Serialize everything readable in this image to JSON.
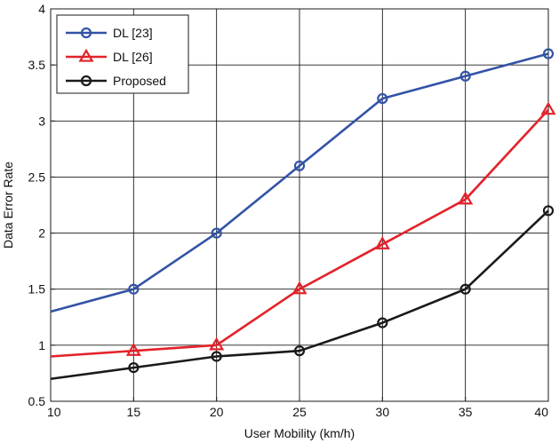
{
  "chart_data": {
    "type": "line",
    "title": "",
    "xlabel": "User Mobility (km/h)",
    "ylabel": "Data Error Rate",
    "xlim": [
      10,
      40
    ],
    "ylim": [
      0.5,
      4
    ],
    "xticks": [
      10,
      15,
      20,
      25,
      30,
      35,
      40
    ],
    "yticks": [
      0.5,
      1,
      1.5,
      2,
      2.5,
      3,
      3.5,
      4
    ],
    "xtick_labels": [
      "10",
      "15",
      "20",
      "25",
      "30",
      "35",
      "40"
    ],
    "ytick_labels": [
      "0.5",
      "1",
      "1.5",
      "2",
      "2.5",
      "3",
      "3.5",
      "4"
    ],
    "grid": true,
    "legend_position": "top-left",
    "series": [
      {
        "name": "DL [23]",
        "color": "#3353a6",
        "marker": "circle",
        "x": [
          10,
          15,
          20,
          25,
          30,
          35,
          40
        ],
        "values": [
          1.3,
          1.5,
          2.0,
          2.6,
          3.2,
          3.4,
          3.6
        ]
      },
      {
        "name": "DL [26]",
        "color": "#e3222a",
        "marker": "triangle",
        "x": [
          10,
          15,
          20,
          25,
          30,
          35,
          40
        ],
        "values": [
          0.9,
          0.95,
          1.0,
          1.5,
          1.9,
          2.3,
          3.1
        ]
      },
      {
        "name": "Proposed",
        "color": "#1a1a1a",
        "marker": "circle",
        "x": [
          10,
          15,
          20,
          25,
          30,
          35,
          40
        ],
        "values": [
          0.7,
          0.8,
          0.9,
          0.95,
          1.2,
          1.5,
          2.2
        ]
      }
    ]
  }
}
